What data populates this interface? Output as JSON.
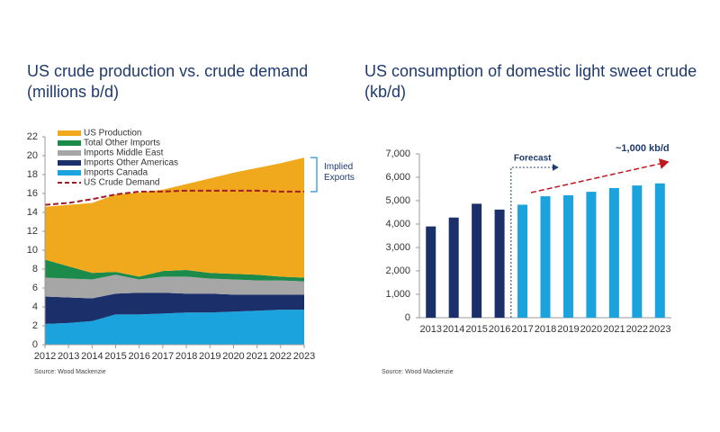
{
  "chart_data": [
    {
      "type": "stacked_area",
      "title": "US crude production vs. crude demand (millions b/d)",
      "x": [
        2012,
        2013,
        2014,
        2015,
        2016,
        2017,
        2018,
        2019,
        2020,
        2021,
        2022,
        2023
      ],
      "xlim": [
        2012,
        2023
      ],
      "ylim": [
        0,
        22
      ],
      "yticks": [
        0,
        2,
        4,
        6,
        8,
        10,
        12,
        14,
        16,
        18,
        20,
        22
      ],
      "series": [
        {
          "name": "Imports Canada",
          "color": "#1aa3dc",
          "values": [
            2.2,
            2.3,
            2.5,
            3.2,
            3.2,
            3.3,
            3.4,
            3.4,
            3.5,
            3.6,
            3.7,
            3.7
          ]
        },
        {
          "name": "Imports Other Americas",
          "color": "#1b2f6b",
          "values": [
            2.9,
            2.7,
            2.4,
            2.2,
            2.3,
            2.2,
            2.0,
            2.0,
            1.8,
            1.7,
            1.6,
            1.6
          ]
        },
        {
          "name": "Imports Middle East",
          "color": "#a6a6a6",
          "values": [
            2.0,
            2.0,
            2.0,
            2.0,
            1.4,
            1.7,
            1.8,
            1.6,
            1.6,
            1.5,
            1.5,
            1.4
          ]
        },
        {
          "name": "Total Other Imports",
          "color": "#1b8a4a",
          "values": [
            1.9,
            1.3,
            0.7,
            0.3,
            0.3,
            0.6,
            0.7,
            0.6,
            0.6,
            0.6,
            0.4,
            0.4
          ]
        },
        {
          "name": "US Production",
          "color": "#f0a91c",
          "values": [
            5.6,
            6.5,
            7.4,
            8.2,
            8.9,
            8.6,
            9.1,
            10.0,
            10.7,
            11.3,
            12.0,
            12.7
          ]
        },
        {
          "name": "US Crude Demand",
          "color": "#a01c24",
          "kind": "line",
          "values": [
            14.8,
            15.0,
            15.4,
            15.9,
            16.2,
            16.2,
            16.3,
            16.3,
            16.3,
            16.3,
            16.2,
            16.2
          ]
        }
      ],
      "annotation": "Implied Exports",
      "source": "Source: Wood Mackenzie"
    },
    {
      "type": "bar",
      "title": "US consumption of domestic light sweet crude (kb/d)",
      "categories": [
        2013,
        2014,
        2015,
        2016,
        2017,
        2018,
        2019,
        2020,
        2021,
        2022,
        2023
      ],
      "values": [
        3900,
        4280,
        4870,
        4620,
        4830,
        5190,
        5230,
        5380,
        5540,
        5650,
        5740
      ],
      "colors": [
        "#1b2f6b",
        "#1b2f6b",
        "#1b2f6b",
        "#1b2f6b",
        "#1aa3dc",
        "#1aa3dc",
        "#1aa3dc",
        "#1aa3dc",
        "#1aa3dc",
        "#1aa3dc",
        "#1aa3dc"
      ],
      "ylim": [
        0,
        7000
      ],
      "yticks": [
        0,
        {
          "value": 1000,
          "label": "1,000"
        },
        {
          "value": 2000,
          "label": "2,000"
        },
        {
          "value": 3000,
          "label": "3,000"
        },
        {
          "value": 4000,
          "label": "4,000"
        },
        {
          "value": 5000,
          "label": "5,000"
        },
        {
          "value": 6000,
          "label": "6,000"
        },
        {
          "value": 7000,
          "label": "7,000"
        }
      ],
      "annotations": [
        "Forecast",
        "~1,000 kb/d"
      ],
      "source": "Source: Wood Mackenzie"
    }
  ]
}
